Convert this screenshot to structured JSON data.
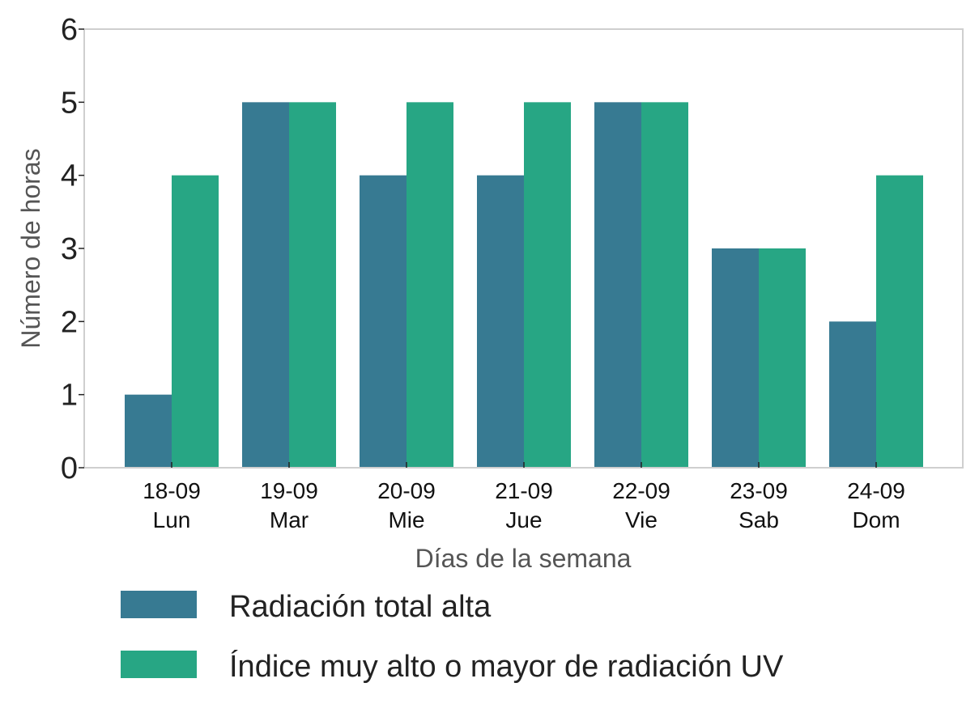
{
  "chart_data": {
    "type": "bar",
    "title": "",
    "xlabel": "Días de la semana",
    "ylabel": "Número de horas",
    "categories": [
      [
        "18-09",
        "Lun"
      ],
      [
        "19-09",
        "Mar"
      ],
      [
        "20-09",
        "Mie"
      ],
      [
        "21-09",
        "Jue"
      ],
      [
        "22-09",
        "Vie"
      ],
      [
        "23-09",
        "Sab"
      ],
      [
        "24-09",
        "Dom"
      ]
    ],
    "series": [
      {
        "name": "Radiación total alta",
        "color": "#377a92",
        "values": [
          1,
          5,
          4,
          4,
          5,
          3,
          2
        ]
      },
      {
        "name": "Índice muy alto o mayor de radiación UV",
        "color": "#27a684",
        "values": [
          4,
          5,
          5,
          5,
          5,
          3,
          4
        ]
      }
    ],
    "ylim": [
      0,
      6
    ],
    "yticks": [
      0,
      1,
      2,
      3,
      4,
      5,
      6
    ],
    "grid": false,
    "legend_position": "bottom"
  }
}
